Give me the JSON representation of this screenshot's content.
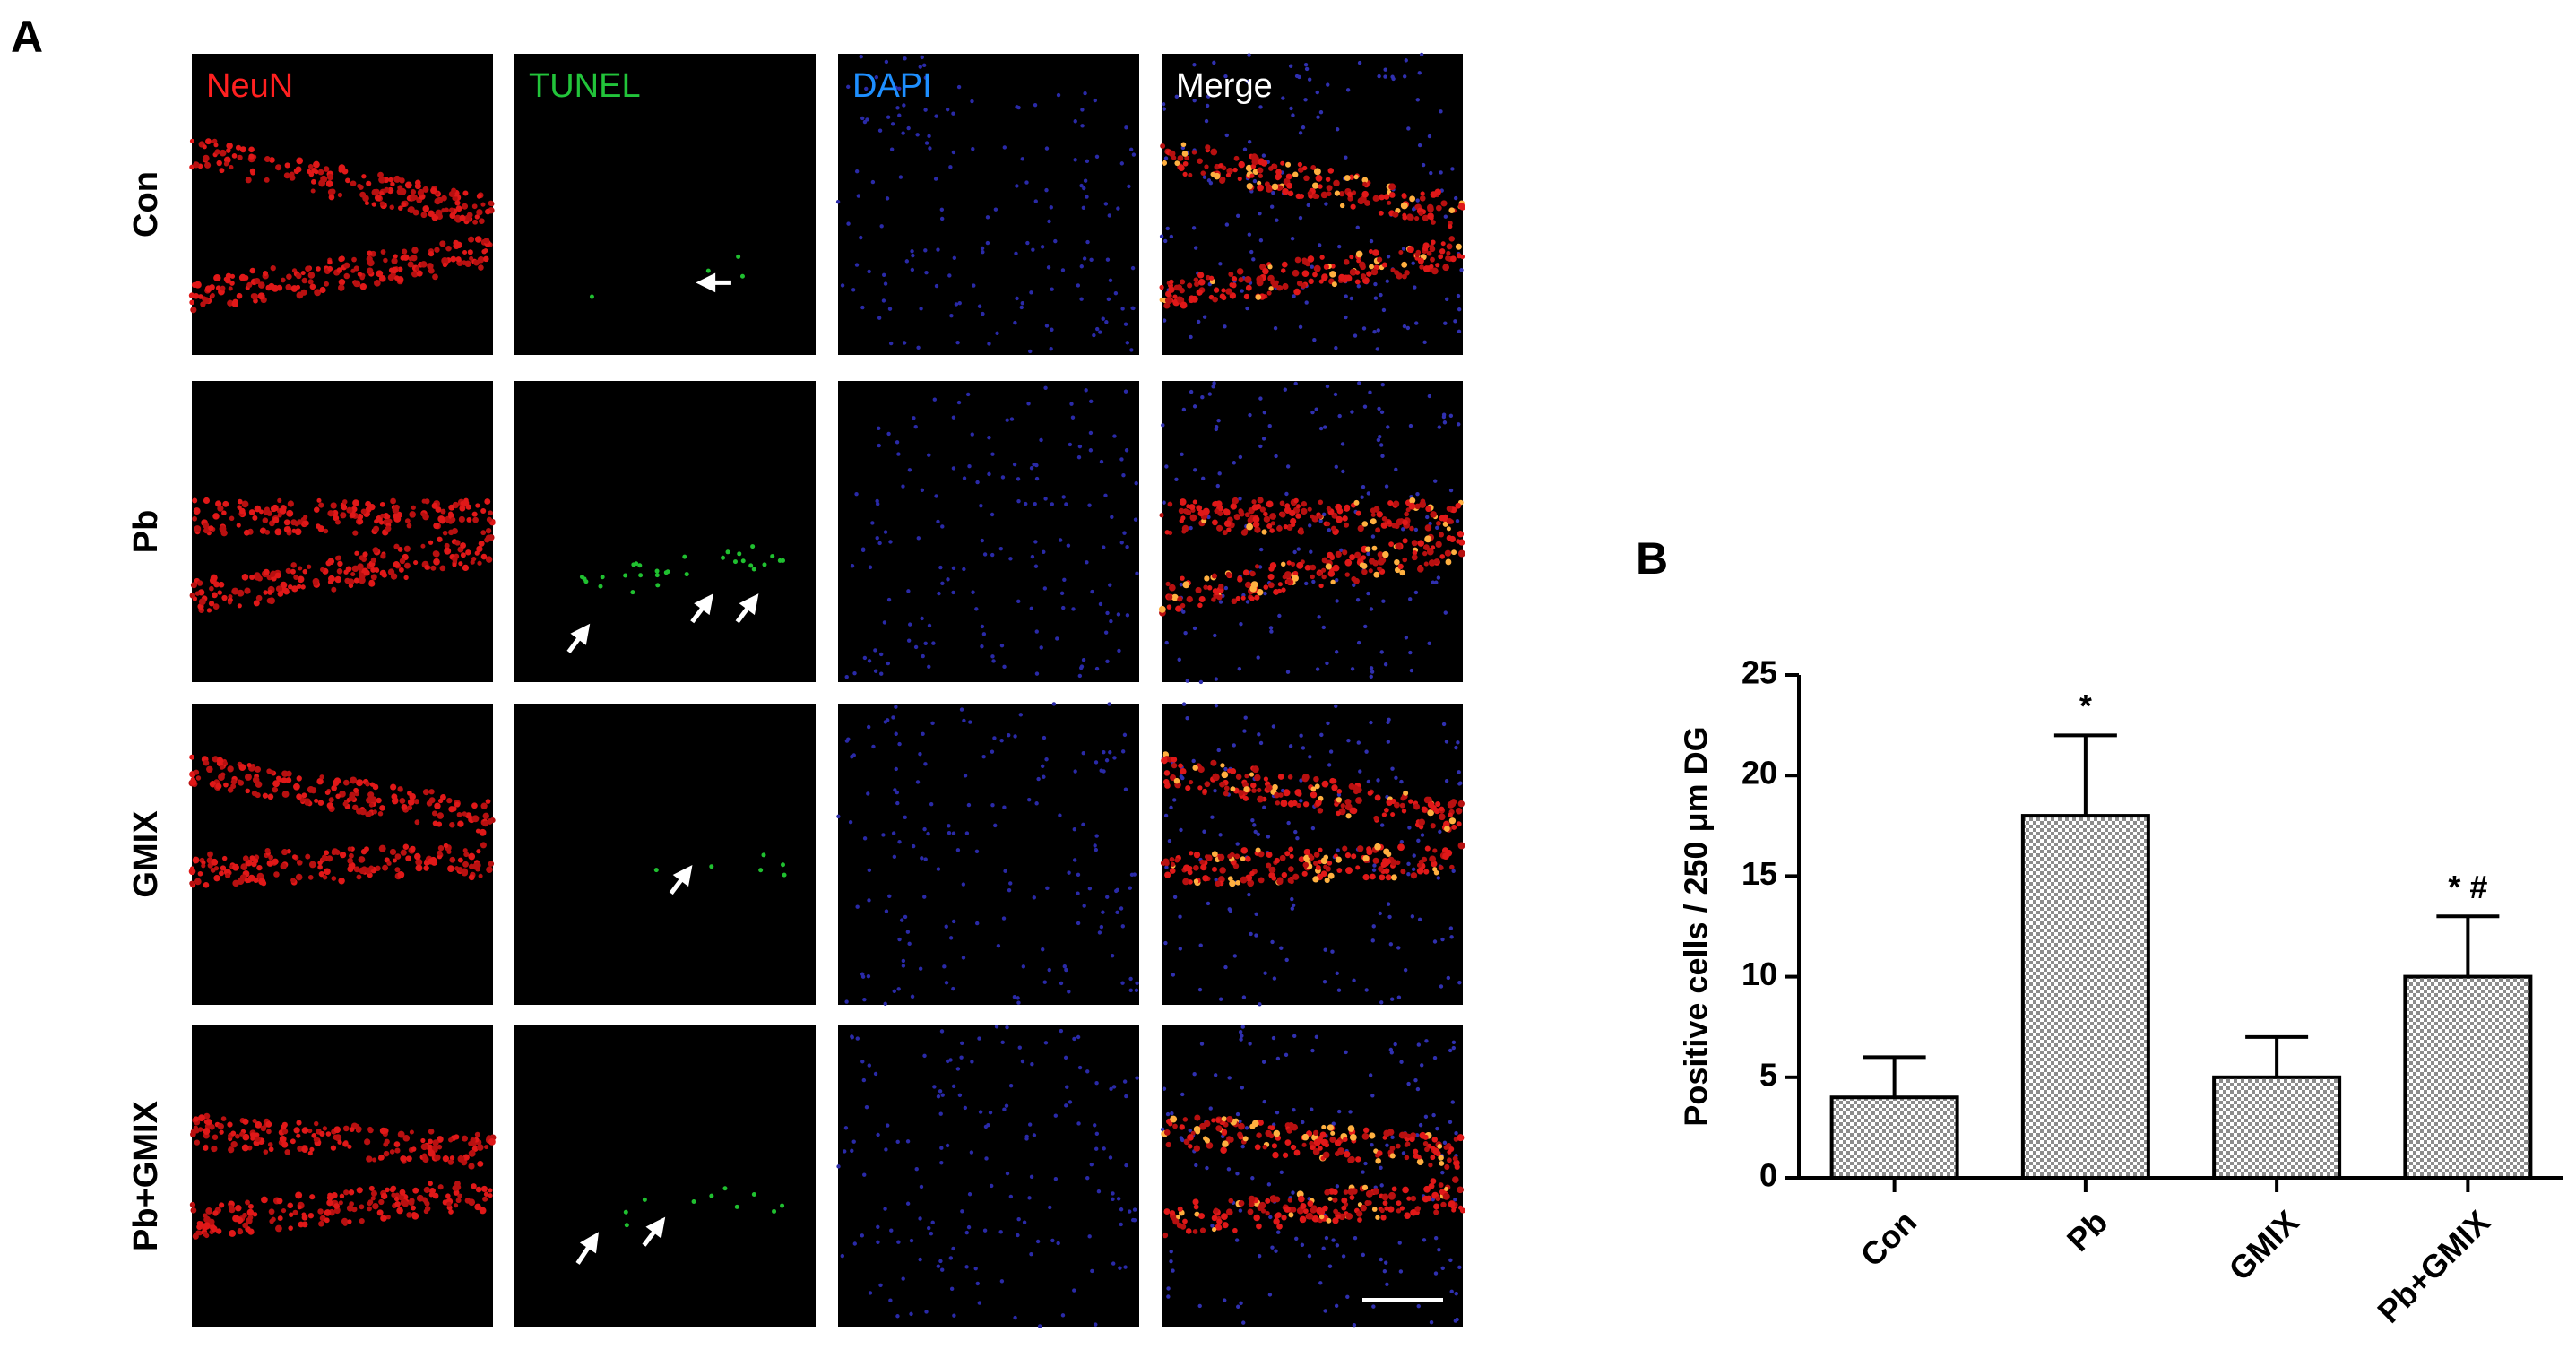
{
  "panel_a": {
    "label": "A",
    "columns": [
      "NeuN",
      "TUNEL",
      "DAPI",
      "Merge"
    ],
    "rows": [
      "Con",
      "Pb",
      "GMIX",
      "Pb+GMIX"
    ]
  },
  "chart_data": {
    "type": "bar",
    "label": "B",
    "ylabel": "Positive cells / 250 μm DG",
    "categories": [
      "Con",
      "Pb",
      "GMIX",
      "Pb+GMIX"
    ],
    "values": [
      4,
      18,
      5,
      10
    ],
    "errors": [
      2,
      4,
      2,
      3
    ],
    "annotations": [
      null,
      "*",
      null,
      "* #"
    ],
    "color": "#8c8c8c",
    "ylim": [
      0,
      25
    ],
    "yticks": [
      0,
      5,
      10,
      15,
      20,
      25
    ]
  }
}
